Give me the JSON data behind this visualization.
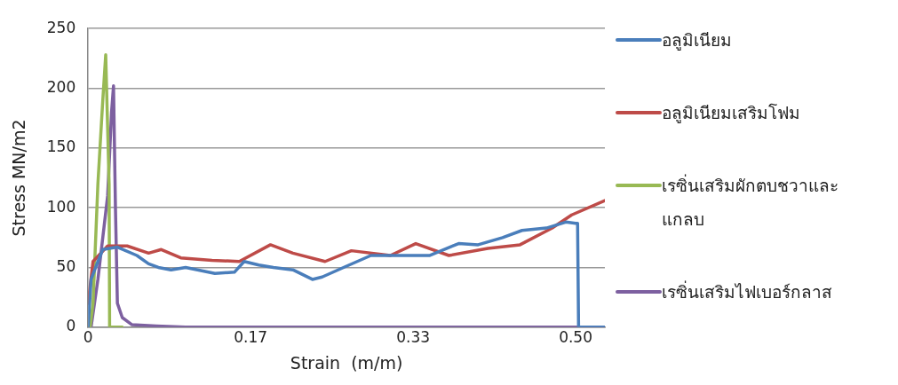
{
  "chart_data": {
    "type": "line",
    "xlabel": "Strain  (m/m)",
    "ylabel": "Stress MN/m2",
    "xlim": [
      0,
      0.53
    ],
    "xticks": [
      0,
      {
        "value": 0.1667,
        "label": "0.17"
      },
      {
        "value": 0.3333,
        "label": "0.33"
      },
      {
        "value": 0.5,
        "label": "0.50"
      }
    ],
    "ylim": [
      0,
      250
    ],
    "yticks": [
      0,
      50,
      100,
      150,
      200,
      250
    ],
    "grid": "y",
    "legend": "right",
    "marker": "none",
    "line_style": "solid",
    "series": [
      {
        "name": "อลูมิเนียม",
        "color": "#4a7ebb",
        "x": [
          0,
          0.003,
          0.01,
          0.015,
          0.03,
          0.05,
          0.062,
          0.072,
          0.085,
          0.1,
          0.13,
          0.15,
          0.16,
          0.175,
          0.19,
          0.21,
          0.23,
          0.24,
          0.262,
          0.29,
          0.32,
          0.35,
          0.38,
          0.4,
          0.425,
          0.445,
          0.47,
          0.49,
          0.5,
          0.502,
          0.503,
          0.53
        ],
        "values": [
          0,
          40,
          55,
          65,
          67,
          60,
          53,
          50,
          48,
          50,
          45,
          46,
          55,
          52,
          50,
          48,
          40,
          42,
          50,
          60,
          60,
          60,
          70,
          69,
          75,
          81,
          83,
          88,
          87,
          87,
          0,
          0
        ]
      },
      {
        "name": "อลูมิเนียมเสริมโฟม",
        "color": "#be4b48",
        "x": [
          0,
          0.005,
          0.02,
          0.04,
          0.062,
          0.075,
          0.095,
          0.127,
          0.155,
          0.187,
          0.21,
          0.243,
          0.27,
          0.31,
          0.336,
          0.37,
          0.41,
          0.443,
          0.476,
          0.496,
          0.53
        ],
        "values": [
          20,
          55,
          68,
          68,
          62,
          65,
          58,
          56,
          55,
          69,
          62,
          55,
          64,
          60,
          70,
          60,
          66,
          69,
          83,
          94,
          106
        ]
      },
      {
        "name": "เรซิ่นเสริมผักตบชวาและแกลบ",
        "color": "#98b954",
        "x": [
          0.002,
          0.005,
          0.01,
          0.015,
          0.018,
          0.0215,
          0.022,
          0.025,
          0.035
        ],
        "values": [
          0,
          20,
          120,
          190,
          228,
          120,
          0,
          0,
          0
        ]
      },
      {
        "name": "เรซิ่นเสริมไฟเบอร์กลาส",
        "color": "#7d60a0",
        "x": [
          0.003,
          0.01,
          0.02,
          0.024,
          0.026,
          0.028,
          0.03,
          0.035,
          0.045,
          0.07,
          0.1,
          0.53
        ],
        "values": [
          0,
          40,
          110,
          180,
          202,
          100,
          20,
          8,
          2,
          1,
          0,
          0
        ]
      }
    ]
  }
}
